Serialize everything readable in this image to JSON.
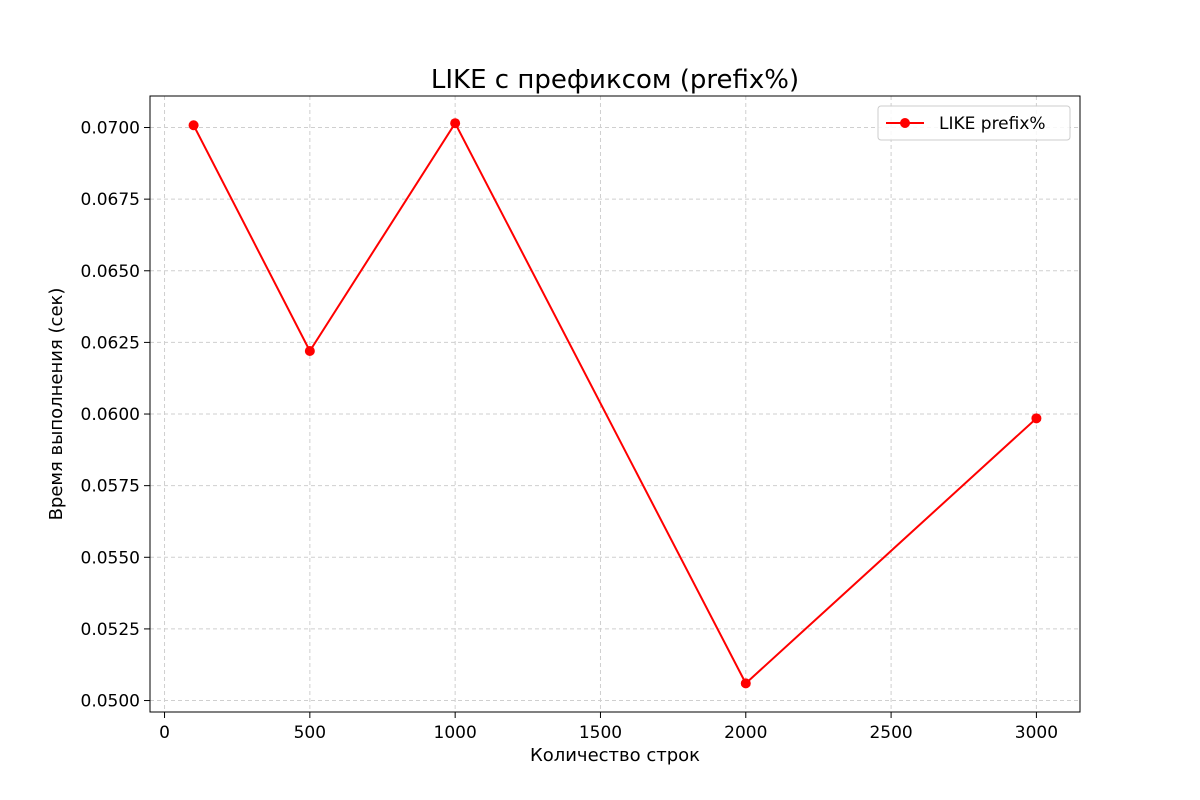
{
  "chart_data": {
    "type": "line",
    "title": "LIKE с префиксом (prefix%)",
    "xlabel": "Количество строк",
    "ylabel": "Время выполнения (сек)",
    "xlim": [
      -50,
      3150
    ],
    "ylim": [
      0.0496,
      0.0711
    ],
    "x_ticks": [
      0,
      500,
      1000,
      1500,
      2000,
      2500,
      3000
    ],
    "x_tick_labels": [
      "0",
      "500",
      "1000",
      "1500",
      "2000",
      "2500",
      "3000"
    ],
    "y_ticks": [
      0.05,
      0.0525,
      0.055,
      0.0575,
      0.06,
      0.0625,
      0.065,
      0.0675,
      0.07
    ],
    "y_tick_labels": [
      "0.0500",
      "0.0525",
      "0.0550",
      "0.0575",
      "0.0600",
      "0.0625",
      "0.0650",
      "0.0675",
      "0.0700"
    ],
    "grid": true,
    "legend_position": "top-right",
    "series": [
      {
        "name": "LIKE prefix%",
        "color": "#ff0000",
        "marker": "circle",
        "x": [
          100,
          500,
          1000,
          2000,
          3000
        ],
        "y": [
          0.07008,
          0.0622,
          0.07015,
          0.0506,
          0.05985
        ]
      }
    ]
  }
}
